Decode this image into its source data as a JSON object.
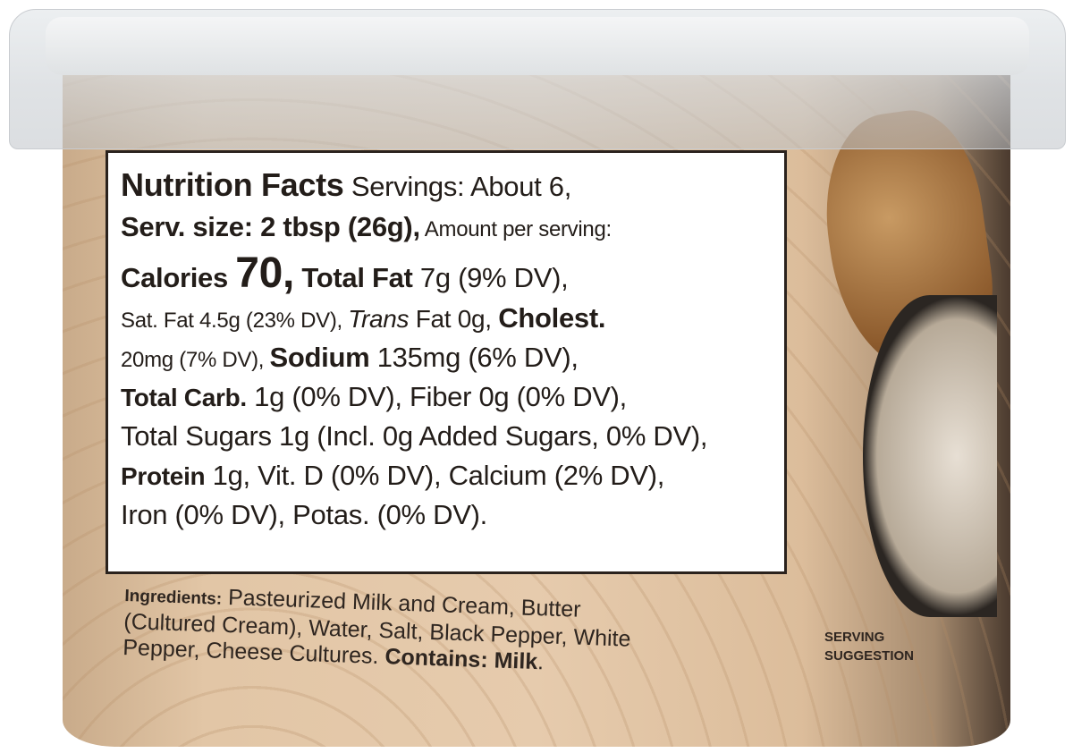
{
  "nutrition": {
    "title": "Nutrition Facts",
    "servings": " Servings: About 6,",
    "serv_size": "Serv. size: 2 tbsp (26g),",
    "amount_per_serving": " Amount per serving:",
    "calories_label": "Calories ",
    "calories_value": "70,",
    "total_fat_label": " Total Fat",
    "total_fat_value": " 7g (9% DV),",
    "sat_fat": "Sat. Fat 4.5g (23% DV), ",
    "trans_label": "Trans",
    "trans_value": " Fat 0g, ",
    "cholest_label": "Cholest.",
    "cholest_value": "20mg (7% DV), ",
    "sodium_label": "Sodium",
    "sodium_value": " 135mg (6% DV),",
    "carb_label": "Total Carb.",
    "carb_value": " 1g (0% DV), Fiber 0g (0% DV),",
    "sugars": "Total Sugars 1g (Incl. 0g Added Sugars, 0% DV),",
    "protein_label": "Protein",
    "protein_value": " 1g, Vit. D (0% DV), Calcium (2% DV),",
    "iron": "Iron (0% DV), Potas. (0% DV)."
  },
  "ingredients": {
    "label": "Ingredients:",
    "text": " Pasteurized Milk and Cream, Butter (Cultured Cream), Water, Salt, Black Pepper, White Pepper, Cheese Cultures. ",
    "contains": "Contains: Milk",
    "end": "."
  },
  "serving_suggestion": {
    "line1": "SERVING",
    "line2": "SUGGESTION"
  },
  "colors": {
    "package": "#e2c6a6",
    "text": "#231d19",
    "label_bg": "#ffffff"
  }
}
